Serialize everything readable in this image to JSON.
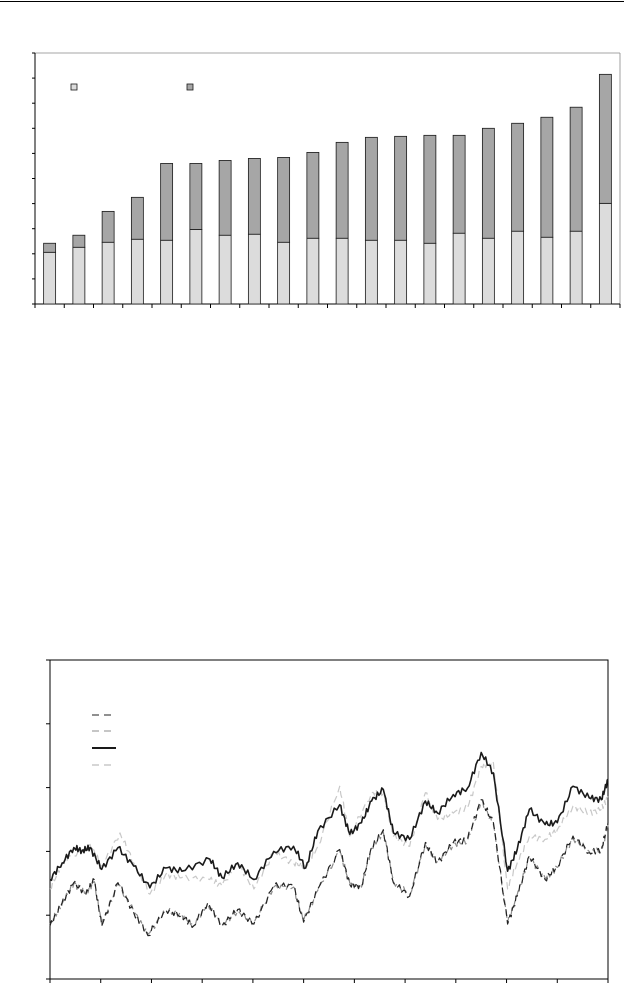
{
  "chart_data": [
    {
      "type": "bar",
      "stacked": true,
      "title": "",
      "xlabel": "",
      "ylabel": "",
      "ylim": [
        0,
        10
      ],
      "y_ticks": 10,
      "grid": false,
      "legend": "top-left",
      "colors": {
        "bottom": "#dcdcdc",
        "top": "#a6a6a6",
        "stroke": "#1a1a1a"
      },
      "series": [
        {
          "values": [
            2.06,
            2.26,
            2.46,
            2.58,
            2.54,
            2.97,
            2.74,
            2.78,
            2.46,
            2.62,
            2.62,
            2.54,
            2.54,
            2.42,
            2.82,
            2.62,
            2.9,
            2.66,
            2.9,
            4.01
          ]
        },
        {
          "values": [
            0.36,
            0.48,
            1.23,
            1.67,
            3.06,
            2.63,
            2.98,
            3.02,
            3.38,
            3.42,
            3.82,
            4.1,
            4.14,
            4.3,
            3.9,
            4.38,
            4.3,
            4.78,
            4.94,
            5.14
          ]
        }
      ]
    },
    {
      "type": "line",
      "title": "",
      "xlabel": "",
      "ylabel": "",
      "xlim": [
        0,
        11
      ],
      "ylim": [
        0,
        5
      ],
      "x_ticks": 11,
      "y_ticks": 5,
      "grid": false,
      "legend": "top-left",
      "series": [
        {
          "style": "dashed",
          "color": "#222222",
          "points": [
            [
              0,
              0.83
            ],
            [
              0.24,
              1.2
            ],
            [
              0.47,
              1.51
            ],
            [
              0.71,
              1.33
            ],
            [
              0.87,
              1.56
            ],
            [
              1.02,
              0.83
            ],
            [
              1.34,
              1.51
            ],
            [
              1.65,
              1.04
            ],
            [
              1.93,
              0.68
            ],
            [
              2.28,
              1.09
            ],
            [
              2.6,
              0.99
            ],
            [
              2.83,
              0.83
            ],
            [
              3.11,
              1.2
            ],
            [
              3.39,
              0.83
            ],
            [
              3.7,
              1.09
            ],
            [
              4.02,
              0.86
            ],
            [
              4.41,
              1.46
            ],
            [
              4.8,
              1.46
            ],
            [
              5.0,
              0.89
            ],
            [
              5.28,
              1.41
            ],
            [
              5.71,
              2.03
            ],
            [
              5.91,
              1.48
            ],
            [
              6.14,
              1.46
            ],
            [
              6.34,
              2.08
            ],
            [
              6.57,
              2.34
            ],
            [
              6.77,
              1.51
            ],
            [
              7.09,
              1.3
            ],
            [
              7.4,
              2.14
            ],
            [
              7.64,
              1.82
            ],
            [
              7.95,
              2.14
            ],
            [
              8.23,
              2.19
            ],
            [
              8.5,
              2.81
            ],
            [
              8.74,
              2.45
            ],
            [
              9.02,
              0.86
            ],
            [
              9.21,
              1.3
            ],
            [
              9.45,
              1.93
            ],
            [
              9.76,
              1.56
            ],
            [
              10.0,
              1.77
            ],
            [
              10.31,
              2.24
            ],
            [
              10.63,
              1.98
            ],
            [
              10.87,
              2.03
            ],
            [
              11,
              2.45
            ]
          ]
        },
        {
          "style": "dashed",
          "color": "#8c8c8c",
          "points": [
            [
              0,
              0.86
            ],
            [
              0.24,
              1.18
            ],
            [
              0.47,
              1.49
            ],
            [
              0.71,
              1.35
            ],
            [
              0.87,
              1.53
            ],
            [
              1.02,
              0.86
            ],
            [
              1.34,
              1.49
            ],
            [
              1.65,
              1.06
            ],
            [
              1.93,
              0.7
            ],
            [
              2.28,
              1.07
            ],
            [
              2.6,
              1.01
            ],
            [
              2.83,
              0.85
            ],
            [
              3.11,
              1.18
            ],
            [
              3.39,
              0.85
            ],
            [
              3.7,
              1.07
            ],
            [
              4.02,
              0.88
            ],
            [
              4.41,
              1.44
            ],
            [
              4.8,
              1.44
            ],
            [
              5.0,
              0.91
            ],
            [
              5.28,
              1.39
            ],
            [
              5.71,
              2.0
            ],
            [
              5.91,
              1.5
            ],
            [
              6.14,
              1.44
            ],
            [
              6.34,
              2.05
            ],
            [
              6.57,
              2.31
            ],
            [
              6.77,
              1.53
            ],
            [
              7.09,
              1.32
            ],
            [
              7.4,
              2.11
            ],
            [
              7.64,
              1.84
            ],
            [
              7.95,
              2.11
            ],
            [
              8.23,
              2.16
            ],
            [
              8.5,
              2.78
            ],
            [
              8.74,
              2.42
            ],
            [
              9.02,
              0.88
            ],
            [
              9.21,
              1.32
            ],
            [
              9.45,
              1.9
            ],
            [
              9.76,
              1.58
            ],
            [
              10.0,
              1.75
            ],
            [
              10.31,
              2.21
            ],
            [
              10.63,
              2.0
            ],
            [
              10.87,
              2.01
            ],
            [
              11,
              2.42
            ]
          ]
        },
        {
          "style": "solid",
          "color": "#1a1a1a",
          "points": [
            [
              0,
              1.56
            ],
            [
              0.24,
              1.82
            ],
            [
              0.47,
              2.06
            ],
            [
              0.63,
              2.01
            ],
            [
              0.79,
              2.06
            ],
            [
              1.02,
              1.72
            ],
            [
              1.34,
              2.06
            ],
            [
              1.65,
              1.77
            ],
            [
              1.97,
              1.43
            ],
            [
              2.28,
              1.74
            ],
            [
              2.6,
              1.69
            ],
            [
              3.15,
              1.88
            ],
            [
              3.39,
              1.59
            ],
            [
              3.7,
              1.82
            ],
            [
              4.02,
              1.56
            ],
            [
              4.41,
              2.0
            ],
            [
              4.8,
              2.08
            ],
            [
              5.04,
              1.74
            ],
            [
              5.28,
              2.32
            ],
            [
              5.71,
              2.73
            ],
            [
              5.91,
              2.27
            ],
            [
              6.14,
              2.45
            ],
            [
              6.34,
              2.79
            ],
            [
              6.57,
              2.97
            ],
            [
              6.77,
              2.29
            ],
            [
              7.09,
              2.19
            ],
            [
              7.4,
              2.79
            ],
            [
              7.64,
              2.6
            ],
            [
              7.95,
              2.89
            ],
            [
              8.23,
              2.99
            ],
            [
              8.5,
              3.55
            ],
            [
              8.74,
              3.23
            ],
            [
              9.02,
              1.69
            ],
            [
              9.21,
              2.03
            ],
            [
              9.45,
              2.66
            ],
            [
              9.76,
              2.42
            ],
            [
              10.0,
              2.45
            ],
            [
              10.31,
              3.02
            ],
            [
              10.63,
              2.84
            ],
            [
              10.87,
              2.81
            ],
            [
              11,
              3.13
            ]
          ]
        },
        {
          "style": "dashed",
          "color": "#c8c8c8",
          "points": [
            [
              0,
              1.41
            ],
            [
              0.24,
              1.82
            ],
            [
              0.79,
              2.11
            ],
            [
              1.02,
              1.77
            ],
            [
              1.38,
              2.29
            ],
            [
              1.65,
              1.82
            ],
            [
              1.97,
              1.33
            ],
            [
              2.28,
              1.64
            ],
            [
              2.6,
              1.59
            ],
            [
              3.15,
              1.56
            ],
            [
              3.39,
              1.46
            ],
            [
              3.7,
              1.82
            ],
            [
              4.02,
              1.41
            ],
            [
              4.41,
              1.98
            ],
            [
              4.8,
              1.82
            ],
            [
              5.04,
              1.77
            ],
            [
              5.28,
              2.08
            ],
            [
              5.71,
              3.02
            ],
            [
              5.91,
              2.24
            ],
            [
              6.34,
              2.92
            ],
            [
              6.57,
              2.92
            ],
            [
              6.77,
              2.24
            ],
            [
              7.09,
              2.08
            ],
            [
              7.4,
              2.92
            ],
            [
              7.64,
              2.5
            ],
            [
              7.95,
              2.6
            ],
            [
              8.23,
              2.68
            ],
            [
              8.5,
              3.33
            ],
            [
              8.74,
              3.39
            ],
            [
              9.02,
              1.41
            ],
            [
              9.21,
              1.82
            ],
            [
              9.45,
              2.24
            ],
            [
              9.76,
              2.19
            ],
            [
              10.0,
              2.34
            ],
            [
              10.31,
              2.71
            ],
            [
              10.63,
              2.6
            ],
            [
              10.87,
              2.66
            ],
            [
              11,
              2.86
            ]
          ]
        }
      ]
    }
  ]
}
